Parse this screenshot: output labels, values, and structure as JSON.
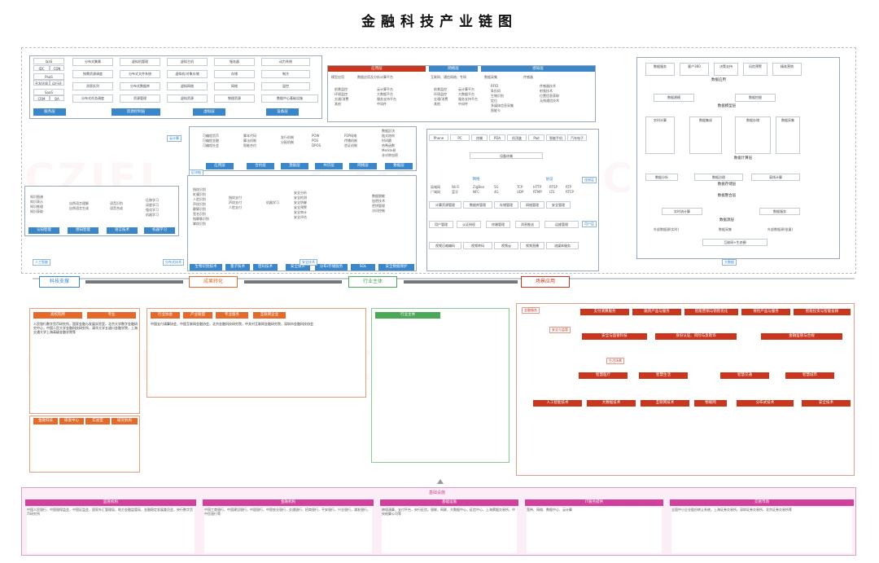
{
  "title": "金融科技产业链图",
  "colors": {
    "blue": "#3a86c8",
    "red": "#c8361e",
    "orange": "#e46a2b",
    "green": "#4aa856",
    "magenta": "#d1409a"
  },
  "flow": {
    "tech_support": "科技支撑",
    "achievement": "成果转化",
    "industry_body": "行业主体",
    "scene_app": "场景应用",
    "ai": "人工智能",
    "distributed": "分布式技术",
    "security": "安全技术",
    "big_data": "大数据"
  },
  "cloud": {
    "iaas": "IaaS",
    "paas": "PaaS",
    "saas": "SaaS",
    "rows": [
      "IDC",
      "CDN",
      "开发环境",
      "运行环境",
      "CRM",
      "BA"
    ],
    "items": [
      "分布式集属",
      "虚拟机管理",
      "虚拟主机",
      "服务器",
      "动力系统",
      "按需资源调度",
      "分布式文件系统",
      "虚拟机/对象存储",
      "存储",
      "制冷",
      "消息队列",
      "分布式数据库",
      "虚拟网络",
      "网络",
      "监控",
      "分布式任务调度",
      "资源管理",
      "虚拟资源",
      "物理资源",
      "数据中心基础设施"
    ],
    "labels": [
      "服务层",
      "资源控制层",
      "虚拟层",
      "设备层"
    ],
    "side": "云计算"
  },
  "app_layer": {
    "label": "应用层",
    "items": [
      "模型应用",
      "数据应用及分析计算平台",
      "前景监控",
      "云计算平台",
      "环境监控",
      "大数据平台",
      "交通/消费",
      "服务支持平台",
      "其他",
      "中间件"
    ]
  },
  "network_layer": {
    "label": "网络层",
    "items": [
      "互联网、通信网络、专网",
      "前景监控",
      "云计算平台",
      "环境监控",
      "大数据平台",
      "交通/消费",
      "服务支持平台",
      "其他",
      "中间件"
    ]
  },
  "perception_layer": {
    "label": "感知层",
    "items": [
      "数据采集",
      "传感器",
      "RFID",
      "条形码",
      "生物识别",
      "定位",
      "多媒体信息采集",
      "智能卡",
      "传感器技术",
      "射频技术",
      "位置信息获取",
      "无线通信技术"
    ]
  },
  "blockchain": {
    "layers": [
      "应用层",
      "合约层",
      "激励层",
      "共识层",
      "网络层",
      "数据层"
    ],
    "items": [
      "可编程货币",
      "可编程金融",
      "可编程社会",
      "脚本代码",
      "算法机制",
      "智能合约",
      "发行机制",
      "分配机制",
      "POW",
      "POS",
      "DPOS",
      "P2P网络",
      "传播机制",
      "验证机制",
      "数据区块",
      "链式结构",
      "时间戳",
      "哈希函数",
      "Merkle树",
      "非对称加密"
    ],
    "side": "区块链"
  },
  "ai_stack": {
    "items": [
      "知识图谱",
      "知识表示",
      "知识推理",
      "知识获取",
      "自然语言理解",
      "自然语言生成",
      "语音识别",
      "语音合成",
      "迁移学习",
      "深度学习",
      "强化学习",
      "机器学习"
    ],
    "labels": [
      "认知智能",
      "感知智能",
      "语言技术",
      "机器学习"
    ]
  },
  "security_stack": {
    "items": [
      "指纹识别",
      "虹膜识别",
      "人脸识别",
      "声纹识别",
      "静脉识别",
      "签名识别",
      "指静脉识别",
      "掌纹识别",
      "指纹支付",
      "声纹支付",
      "人脸支付",
      "机器学习",
      "安全分析",
      "安全检测",
      "安全防御",
      "安全预警",
      "安全审计",
      "安全评估",
      "数据脱敏",
      "加密技术",
      "密钥管理",
      "访问控制"
    ],
    "labels": [
      "生物识别技术",
      "量子技术",
      "密码技术",
      "安全技术",
      "分布/存储服务",
      "SDL",
      "安全数据保护"
    ]
  },
  "comm": {
    "top": [
      "Phone",
      "PC",
      "终端",
      "PDA",
      "机顶盒",
      "Pad",
      "智能手机",
      "汽车电子",
      "设备终端"
    ],
    "rows": [
      "局域网",
      "广域网",
      "Wi-Fi",
      "蓝牙",
      "ZigBee",
      "NFC",
      "TCP",
      "UDP",
      "HTTP",
      "RTSP",
      "RTP",
      "RTCP",
      "RTMP",
      "5G",
      "4G",
      "LTE"
    ],
    "labels": [
      "网络",
      "协议",
      "连接层",
      "用户层"
    ],
    "mgmt": [
      "计算资源管理",
      "数据库管理",
      "存储管理",
      "网络管理",
      "安全管理",
      "用户管理",
      "认证授权",
      "终端管理",
      "消息推送",
      "运维管理"
    ],
    "bottom": [
      "视频压缩编码",
      "视频转码",
      "视频云",
      "视频直播",
      "流媒体服务"
    ]
  },
  "big_data_panel": {
    "items": [
      "数据服务",
      "客户360",
      "决策支持",
      "风险预警",
      "精准营销",
      "数据建模",
      "数据挖掘",
      "实时计算",
      "数据集成",
      "数据存储",
      "数据采集",
      "数据分析",
      "数据治理",
      "离线计算",
      "实时流计算"
    ],
    "labels": [
      "数据应用",
      "数据模型层",
      "数据计算层",
      "数据存储层",
      "数据整合层",
      "数据源层"
    ],
    "bottom": [
      "外部数据源(实时)",
      "数据采集",
      "外部数据源(批量)",
      "互联网+生态圈"
    ],
    "side": "大数据"
  },
  "left_orgs": {
    "cat1": "研究机构",
    "boxes": [
      "高校院所",
      "专业",
      "金融科技",
      "研发中心",
      "实验室"
    ],
    "desc": "人民银行数字货币研究所，国家金融与发展实验室，北京大学数字金融研究中心，中国人民大学金融科技研究所，清华大学五道口金融学院，上海交通大学上海高级金融学院等"
  },
  "middle_orgs": {
    "cat": "行业协会",
    "cats": [
      "行业协会",
      "产业联盟",
      "专业服务",
      "互联网企业"
    ],
    "desc": "中国支付清算协会，中国互联网金融协会，北京金融科技研究院，中关村互联网金融研究院，深圳市金融科技协会"
  },
  "right_apps": {
    "label": "场景应用",
    "finance": [
      "金融服务",
      "支付清算服务",
      "融资产品与服务",
      "智能营销与销售优化",
      "保险产品与服务",
      "智能投资与智能投顾"
    ],
    "security": [
      "安全与监管",
      "安全与监管科技",
      "身份认证、风险与反欺诈",
      "金融监管与合规"
    ],
    "life": [
      "生活场景",
      "智慧医疗",
      "智慧生活",
      "智慧交通",
      "智慧城市"
    ],
    "fields": [
      "人工智能技术",
      "大数据技术",
      "互联网技术",
      "物联网",
      "分布式技术",
      "安全技术"
    ]
  },
  "bottom": {
    "label": "基础设施",
    "items": [
      {
        "name": "监管机构",
        "text": "中国人民银行，中国银保监会，中国证监会，国家外汇管理局，地方金融监管局，金融稳定发展委员会，央行数字货币研究所"
      },
      {
        "name": "金融机构",
        "text": "中国工商银行，中国建设银行，中国银行，中国农业银行，交通银行，招商银行，平安银行，兴业银行，浦发银行，中信银行等"
      },
      {
        "name": "基础设施",
        "text": "跨境清算，支付平台，央行征信，银联，网联，大数据中心，征信中心，上海票据交易所，中央结算公司等"
      },
      {
        "name": "IT服务提供",
        "text": "宽带、网络、数据中心、云计算"
      },
      {
        "name": "交易市场",
        "text": "全国中小企业股份转让系统，上海证券交易所，深圳证券交易所，北京证券交易所等"
      }
    ]
  },
  "watermark": "CZIFI"
}
